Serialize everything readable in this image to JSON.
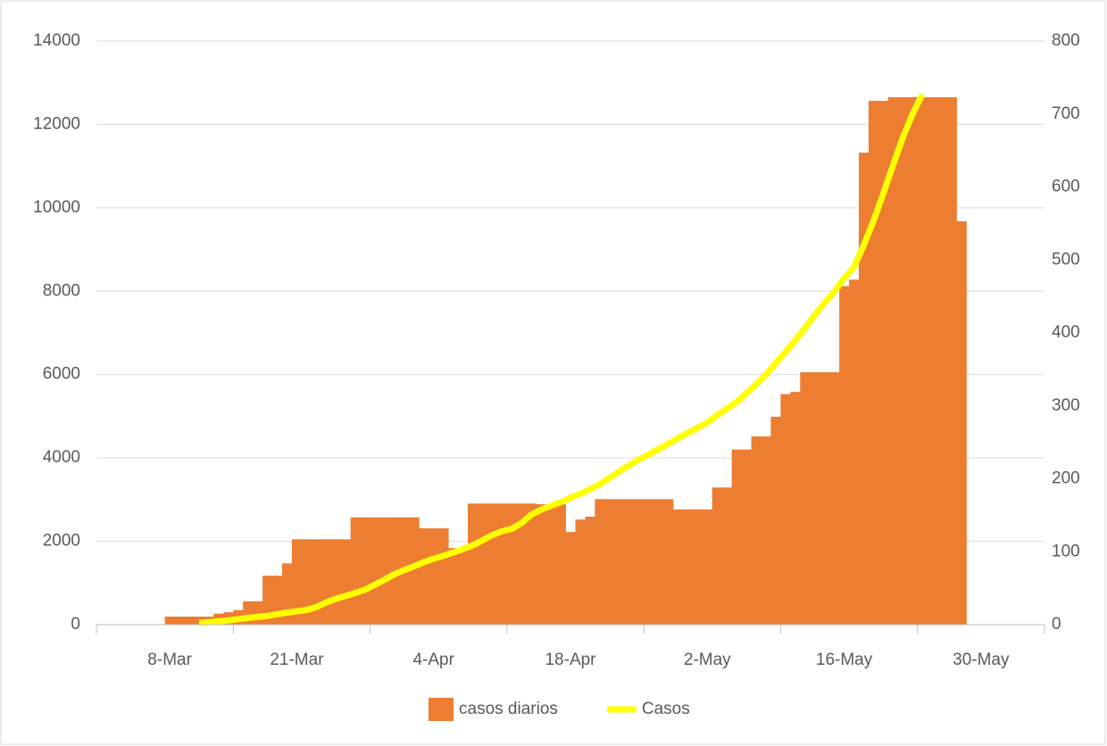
{
  "chart_data": {
    "type": "combo",
    "categories": [
      null,
      null,
      null,
      null,
      null,
      null,
      null,
      "8-Mar",
      null,
      null,
      null,
      null,
      null,
      null,
      null,
      null,
      null,
      null,
      null,
      null,
      "21-Mar",
      null,
      null,
      null,
      null,
      null,
      null,
      null,
      null,
      null,
      null,
      null,
      null,
      null,
      "4-Apr",
      null,
      null,
      null,
      null,
      null,
      null,
      null,
      null,
      null,
      null,
      null,
      null,
      null,
      "18-Apr",
      null,
      null,
      null,
      null,
      null,
      null,
      null,
      null,
      null,
      null,
      null,
      null,
      null,
      "2-May",
      null,
      null,
      null,
      null,
      null,
      null,
      null,
      null,
      null,
      null,
      null,
      null,
      null,
      "16-May",
      null,
      null,
      null,
      null,
      null,
      null,
      null,
      null,
      null,
      null,
      null,
      null,
      null,
      "30-May",
      null,
      null,
      null,
      null,
      null,
      null
    ],
    "series": [
      {
        "name": "casos diarios",
        "type": "bar",
        "axis": "y2",
        "color": "#ed7d31",
        "values": [
          null,
          null,
          null,
          null,
          null,
          null,
          null,
          11,
          11,
          11,
          11,
          11,
          15,
          17,
          20,
          32,
          32,
          67,
          67,
          84,
          117,
          117,
          117,
          117,
          117,
          117,
          147,
          147,
          147,
          147,
          147,
          147,
          147,
          132,
          132,
          132,
          105,
          105,
          166,
          166,
          166,
          166,
          166,
          166,
          166,
          165,
          165,
          165,
          127,
          144,
          148,
          172,
          172,
          172,
          172,
          172,
          172,
          172,
          172,
          158,
          158,
          158,
          158,
          188,
          188,
          240,
          240,
          258,
          258,
          285,
          316,
          319,
          346,
          346,
          346,
          346,
          464,
          473,
          647,
          718,
          718,
          723,
          723,
          723,
          723,
          723,
          723,
          723,
          553,
          null,
          null,
          null,
          null,
          null,
          null,
          null,
          null
        ]
      },
      {
        "name": "Casos",
        "type": "line",
        "color": "#ffff00",
        "values": [
          null,
          null,
          null,
          null,
          null,
          null,
          null,
          null,
          null,
          null,
          40,
          60,
          80,
          100,
          130,
          160,
          185,
          210,
          250,
          290,
          320,
          350,
          420,
          530,
          620,
          690,
          760,
          840,
          960,
          1080,
          1210,
          1310,
          1400,
          1500,
          1580,
          1650,
          1730,
          1810,
          1900,
          2020,
          2150,
          2240,
          2300,
          2440,
          2640,
          2760,
          2850,
          2940,
          3040,
          3140,
          3250,
          3370,
          3520,
          3680,
          3820,
          3960,
          4080,
          4210,
          4340,
          4470,
          4600,
          4720,
          4850,
          5020,
          5180,
          5340,
          5550,
          5770,
          6000,
          6270,
          6540,
          6820,
          7120,
          7430,
          7720,
          7990,
          8310,
          8570,
          9100,
          9680,
          10340,
          11020,
          11680,
          12250,
          12720,
          null,
          null,
          null,
          null,
          null,
          null,
          null,
          null,
          null,
          null,
          null,
          null
        ]
      }
    ],
    "ylim": [
      0,
      14000
    ],
    "yticks": [
      0,
      2000,
      4000,
      6000,
      8000,
      10000,
      12000,
      14000
    ],
    "y2lim": [
      0,
      800
    ],
    "y2ticks": [
      0,
      100,
      200,
      300,
      400,
      500,
      600,
      700,
      800
    ],
    "grid": true,
    "legend": "bottom"
  }
}
